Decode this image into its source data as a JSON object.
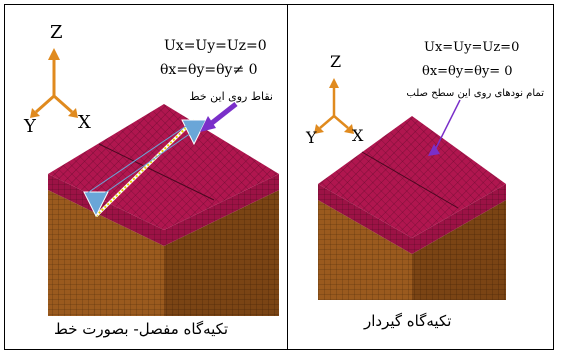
{
  "left_panel": {
    "axes": {
      "z": "Z",
      "y": "Y",
      "x": "X"
    },
    "bc_line1": "Ux=Uy=Uz=0",
    "bc_line2": "θx=θy=θy≠ 0",
    "note": "نقاط روی این خط",
    "caption": "تکیه‌گاه مفصل- بصورت خط"
  },
  "right_panel": {
    "axes": {
      "z": "Z",
      "y": "Y",
      "x": "X"
    },
    "bc_line1": "Ux=Uy=Uz=0",
    "bc_line2": "θx=θy=θy= 0",
    "note": "تمام نودهای روی این سطح صلب",
    "caption": "تکیه‌گاه گیردار"
  },
  "colors": {
    "top_face": "#b0164f",
    "side_face": "#9a5a1e",
    "axis_color": "#e08a1e",
    "arrow_color": "#7a2fc9",
    "support_color": "#6aa6d8"
  }
}
